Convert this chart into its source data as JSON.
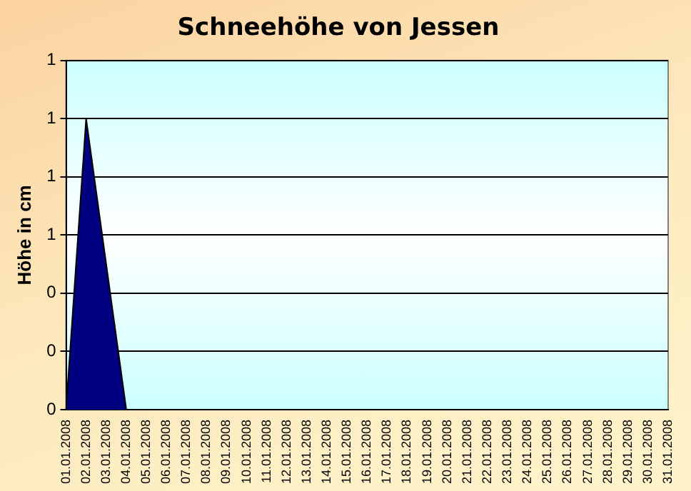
{
  "chart_data": {
    "type": "area",
    "title": "Schneehöhe von Jessen",
    "ylabel": "Höhe in cm",
    "categories": [
      "01.01.2008",
      "02.01.2008",
      "03.01.2008",
      "04.01.2008",
      "05.01.2008",
      "06.01.2008",
      "07.01.2008",
      "08.01.2008",
      "09.01.2008",
      "10.01.2008",
      "11.01.2008",
      "12.01.2008",
      "13.01.2008",
      "14.01.2008",
      "15.01.2008",
      "16.01.2008",
      "17.01.2008",
      "18.01.2008",
      "19.01.2008",
      "20.01.2008",
      "21.01.2008",
      "22.01.2008",
      "23.01.2008",
      "24.01.2008",
      "25.01.2008",
      "26.01.2008",
      "27.01.2008",
      "28.01.2008",
      "29.01.2008",
      "30.01.2008",
      "31.01.2008"
    ],
    "values": [
      0,
      1,
      0.5,
      0,
      0,
      0,
      0,
      0,
      0,
      0,
      0,
      0,
      0,
      0,
      0,
      0,
      0,
      0,
      0,
      0,
      0,
      0,
      0,
      0,
      0,
      0,
      0,
      0,
      0,
      0,
      0
    ],
    "color": "#000080",
    "ylim": [
      0,
      1.2
    ],
    "yticks": [
      0,
      {
        "value": 0.2,
        "label": "0"
      },
      {
        "value": 0.4,
        "label": "0"
      },
      {
        "value": 0.6,
        "label": "1"
      },
      {
        "value": 0.8,
        "label": "1"
      },
      {
        "value": 1,
        "label": "1"
      },
      {
        "value": 1.2,
        "label": "1"
      }
    ],
    "grid": "y",
    "legend": false
  }
}
